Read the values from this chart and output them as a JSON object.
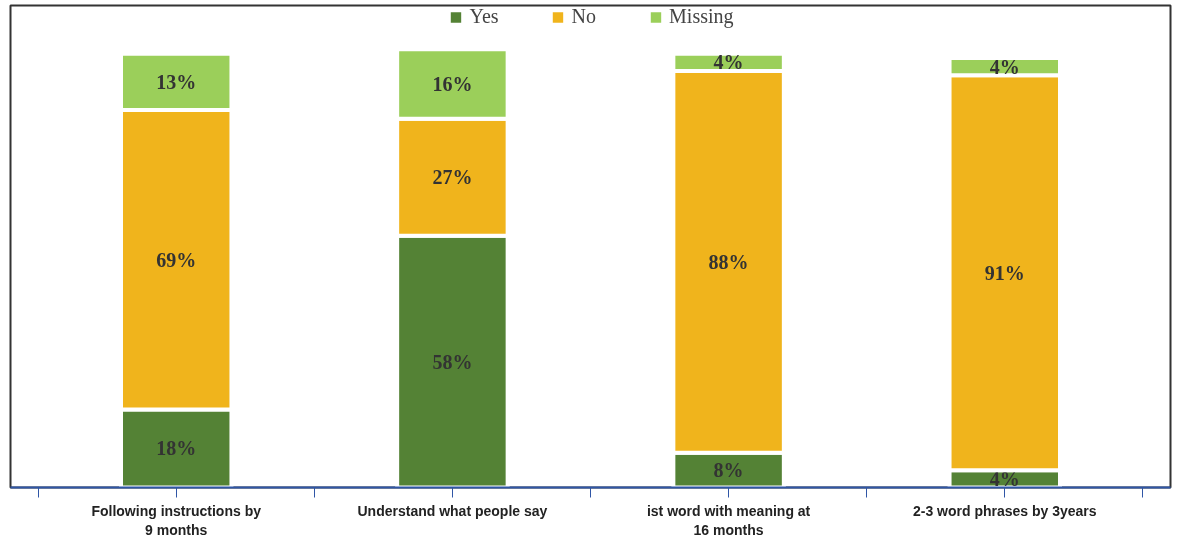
{
  "chart_data": {
    "type": "bar",
    "stacked": true,
    "legend": "top",
    "grid": false,
    "categories": [
      "Following instructions by 9 months",
      "Understand what people say",
      "ist word with meaning at 16 months",
      "2-3 word phrases by 3years"
    ],
    "series": [
      {
        "name": "Yes",
        "color": "#548235",
        "values": [
          18,
          58,
          8,
          4
        ],
        "value_labels": [
          "18%",
          "58%",
          "8%",
          "4%"
        ]
      },
      {
        "name": "No",
        "color": "#f0b41c",
        "values": [
          69,
          27,
          88,
          91
        ],
        "value_labels": [
          "69%",
          "27%",
          "88%",
          "91%"
        ]
      },
      {
        "name": "Missing",
        "color": "#9bcf5a",
        "values": [
          13,
          16,
          4,
          4
        ],
        "value_labels": [
          "13%",
          "16%",
          "4%",
          "4%"
        ]
      }
    ]
  }
}
